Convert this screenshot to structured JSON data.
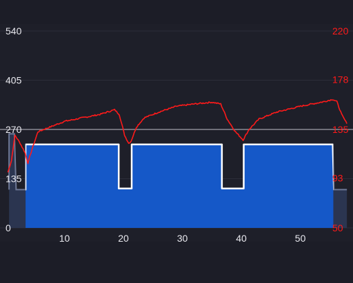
{
  "chart_data": {
    "type": "line",
    "title": "",
    "xlabel": "",
    "ylabel": "",
    "xlim": [
      0,
      58
    ],
    "x_ticks": [
      10,
      20,
      30,
      40,
      50
    ],
    "y_left": {
      "lim": [
        0,
        540
      ],
      "ticks": [
        0,
        135,
        270,
        405,
        540
      ],
      "color": "#e8e8ee"
    },
    "y_right": {
      "lim": [
        50,
        220
      ],
      "ticks": [
        50,
        93,
        135,
        178,
        220
      ],
      "color": "#ff1a1a"
    },
    "grid": true,
    "grid_color": "#2c2d39",
    "highlight_line_color": "#8a8a94",
    "area_color": "#1558c8",
    "area_outline_color": "#ffffff",
    "faded_series_color": "#6e7896",
    "series": [
      {
        "axis": "left",
        "style": "step-area",
        "color": "#ffffff",
        "points": [
          [
            0.6,
            105
          ],
          [
            0.6,
            258
          ],
          [
            1.5,
            258
          ],
          [
            1.8,
            105
          ],
          [
            3.4,
            105
          ],
          [
            3.4,
            229
          ],
          [
            19.2,
            229
          ],
          [
            19.2,
            108
          ],
          [
            21.4,
            108
          ],
          [
            21.4,
            229
          ],
          [
            36.7,
            229
          ],
          [
            36.7,
            108
          ],
          [
            40.4,
            108
          ],
          [
            40.4,
            229
          ],
          [
            55.4,
            229
          ],
          [
            55.5,
            229
          ],
          [
            55.7,
            105
          ],
          [
            57.9,
            105
          ]
        ]
      },
      {
        "axis": "right",
        "style": "line",
        "color": "#ff1a1a",
        "points": [
          [
            0.4,
            98
          ],
          [
            1.0,
            108
          ],
          [
            1.6,
            130
          ],
          [
            2.5,
            123
          ],
          [
            3.3,
            115
          ],
          [
            3.8,
            106
          ],
          [
            4.5,
            118
          ],
          [
            5.5,
            133
          ],
          [
            7.5,
            137
          ],
          [
            10,
            142
          ],
          [
            13,
            145
          ],
          [
            16,
            148
          ],
          [
            18.5,
            152
          ],
          [
            19.3,
            148
          ],
          [
            20.2,
            130
          ],
          [
            20.9,
            123
          ],
          [
            21.3,
            125
          ],
          [
            22.2,
            137
          ],
          [
            23.5,
            145
          ],
          [
            26,
            150
          ],
          [
            29,
            155
          ],
          [
            32,
            157
          ],
          [
            35,
            158.5
          ],
          [
            36.5,
            157
          ],
          [
            37.6,
            144
          ],
          [
            39,
            133
          ],
          [
            40.3,
            126
          ],
          [
            41.3,
            135
          ],
          [
            43,
            144
          ],
          [
            46,
            150
          ],
          [
            50,
            155
          ],
          [
            54,
            159
          ],
          [
            55.5,
            161
          ],
          [
            56.2,
            159
          ],
          [
            57,
            148
          ],
          [
            57.9,
            140
          ]
        ]
      }
    ]
  }
}
